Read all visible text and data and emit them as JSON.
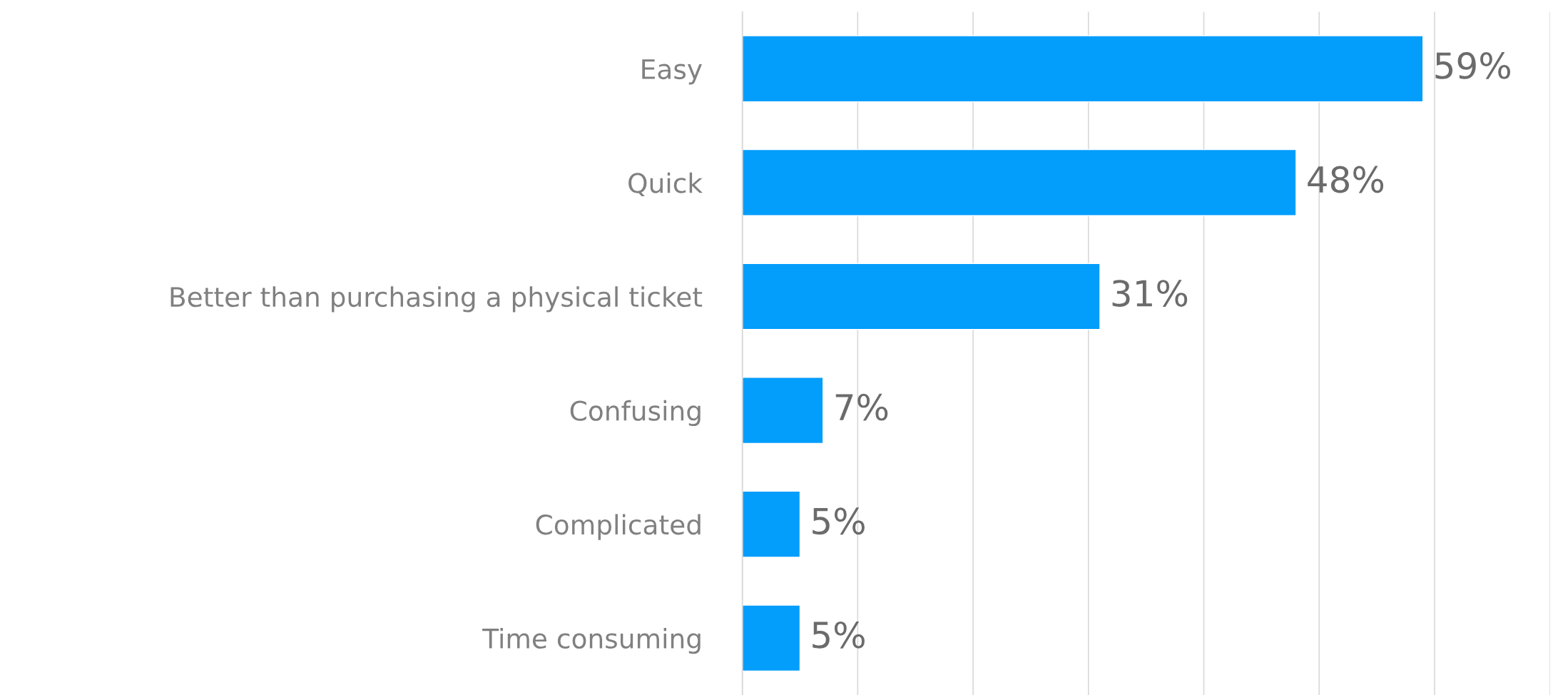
{
  "chart_data": {
    "type": "bar",
    "orientation": "horizontal",
    "categories": [
      "Easy",
      "Quick",
      "Better than purchasing a physical ticket",
      "Confusing",
      "Complicated",
      "Time consuming"
    ],
    "values": [
      59,
      48,
      31,
      7,
      5,
      5
    ],
    "value_labels": [
      "59%",
      "48%",
      "31%",
      "7%",
      "5%",
      "5%"
    ],
    "color": "#039dfc",
    "xlim": [
      0,
      70
    ],
    "xticks": [
      {
        "value": 0,
        "label": null
      },
      {
        "value": 10,
        "label": null
      },
      {
        "value": 20,
        "label": null
      },
      {
        "value": 30,
        "label": null
      },
      {
        "value": 40,
        "label": null
      },
      {
        "value": 50,
        "label": null
      },
      {
        "value": 60,
        "label": null
      },
      {
        "value": 70,
        "label": null
      }
    ],
    "grid": "x",
    "tick_labels": "y"
  }
}
